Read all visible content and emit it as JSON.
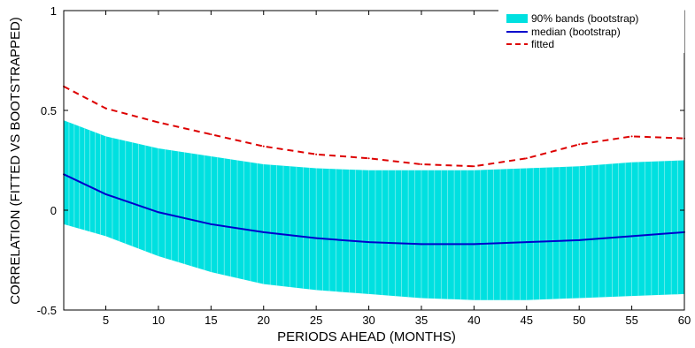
{
  "chart_data": {
    "type": "line",
    "title": "",
    "xlabel": "PERIODS AHEAD (MONTHS)",
    "ylabel": "CORRELATION (FITTED VS BOOTSTRAPPED)",
    "xlim": [
      1,
      60
    ],
    "ylim": [
      -0.5,
      1
    ],
    "xticks": [
      5,
      10,
      15,
      20,
      25,
      30,
      35,
      40,
      45,
      50,
      55,
      60
    ],
    "yticks": [
      -0.5,
      0,
      0.5,
      1
    ],
    "ytick_labels": [
      "-0.5",
      "0",
      "0.5",
      "1"
    ],
    "grid": false,
    "legend_position": "top-right",
    "x": [
      1,
      5,
      10,
      15,
      20,
      25,
      30,
      35,
      40,
      45,
      50,
      55,
      60
    ],
    "series": [
      {
        "name": "90% bands (bootstrap)",
        "kind": "band",
        "color": "#00e0e0",
        "lower": [
          -0.07,
          -0.13,
          -0.23,
          -0.31,
          -0.37,
          -0.4,
          -0.42,
          -0.44,
          -0.45,
          -0.45,
          -0.44,
          -0.43,
          -0.42
        ],
        "upper": [
          0.45,
          0.37,
          0.31,
          0.27,
          0.23,
          0.21,
          0.2,
          0.2,
          0.2,
          0.21,
          0.22,
          0.24,
          0.25
        ]
      },
      {
        "name": "median (bootstrap)",
        "kind": "line",
        "color": "#0000cc",
        "dash": "solid",
        "values": [
          0.18,
          0.08,
          -0.01,
          -0.07,
          -0.11,
          -0.14,
          -0.16,
          -0.17,
          -0.17,
          -0.16,
          -0.15,
          -0.13,
          -0.11
        ]
      },
      {
        "name": "fitted",
        "kind": "line",
        "color": "#dd0000",
        "dash": "dashed",
        "values": [
          0.62,
          0.51,
          0.44,
          0.38,
          0.32,
          0.28,
          0.26,
          0.23,
          0.22,
          0.26,
          0.33,
          0.37,
          0.36
        ]
      }
    ]
  }
}
